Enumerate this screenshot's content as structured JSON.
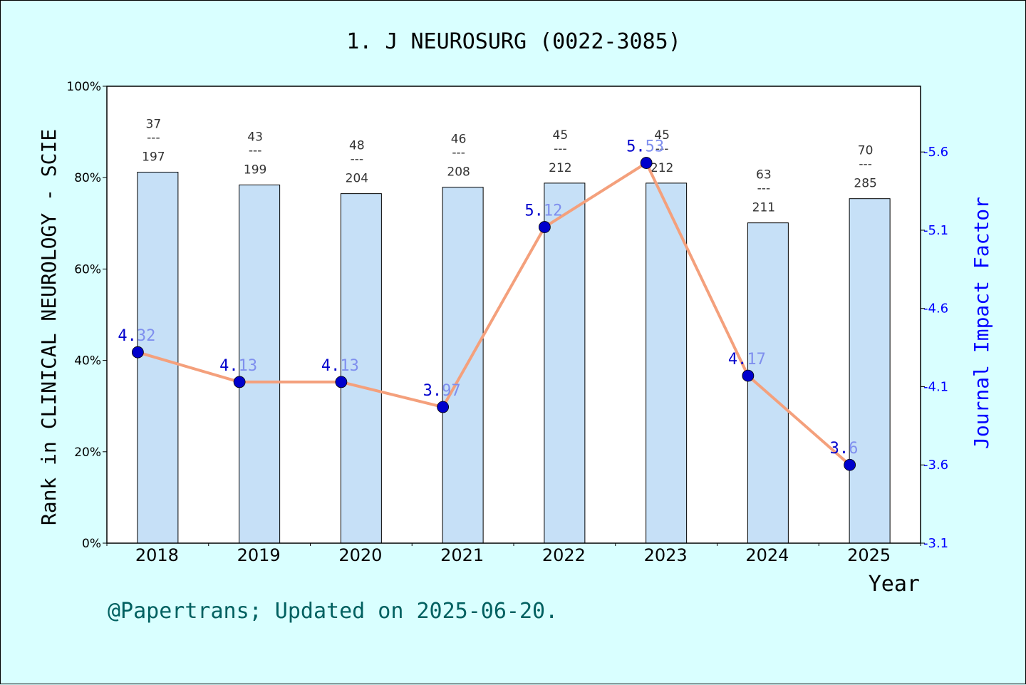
{
  "chart_data": {
    "type": "bar",
    "title": "1. J NEUROSURG (0022-3085)",
    "xlabel": "Year",
    "ylabel_left": "Rank in CLINICAL NEUROLOGY - SCIE",
    "ylabel_right": "Journal Impact Factor",
    "categories": [
      "2018",
      "2019",
      "2020",
      "2021",
      "2022",
      "2023",
      "2024",
      "2025"
    ],
    "left_ylim": [
      0,
      100
    ],
    "left_ticks": [
      "0%",
      "20%",
      "40%",
      "60%",
      "80%",
      "100%"
    ],
    "right_ylim": [
      3.1,
      6.02
    ],
    "right_ticks": [
      "3.1",
      "3.6",
      "4.1",
      "4.6",
      "5.1",
      "5.6"
    ],
    "series": [
      {
        "kind": "bar",
        "values": [
          81.2,
          78.4,
          76.5,
          77.9,
          78.8,
          78.8,
          70.1,
          75.4
        ],
        "color": "#c6e0f7",
        "rank_labels": [
          {
            "rank": "37",
            "total": "197"
          },
          {
            "rank": "43",
            "total": "199"
          },
          {
            "rank": "48",
            "total": "204"
          },
          {
            "rank": "46",
            "total": "208"
          },
          {
            "rank": "45",
            "total": "212"
          },
          {
            "rank": "45",
            "total": "212"
          },
          {
            "rank": "63",
            "total": "211"
          },
          {
            "rank": "70",
            "total": "285"
          }
        ],
        "separator": "---"
      },
      {
        "kind": "line",
        "values": [
          4.32,
          4.13,
          4.13,
          3.97,
          5.12,
          5.53,
          4.17,
          3.6
        ],
        "labels": [
          [
            "4.",
            "32"
          ],
          [
            "4.",
            "13"
          ],
          [
            "4.",
            "13"
          ],
          [
            "3.",
            "97"
          ],
          [
            "5.",
            "12"
          ],
          [
            "5.",
            "53"
          ],
          [
            "4.",
            "17"
          ],
          [
            "3.",
            "6"
          ]
        ],
        "line_color": "#f4a07c",
        "marker_color": "#0000cc"
      }
    ],
    "grid": false
  },
  "footer": "@Papertrans; Updated on 2025-06-20."
}
